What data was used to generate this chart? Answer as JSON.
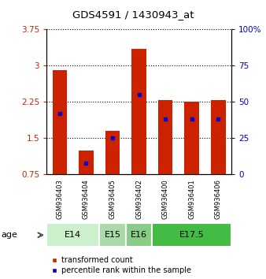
{
  "title": "GDS4591 / 1430943_at",
  "samples": [
    "GSM936403",
    "GSM936404",
    "GSM936405",
    "GSM936402",
    "GSM936400",
    "GSM936401",
    "GSM936406"
  ],
  "transformed_counts": [
    2.9,
    1.25,
    1.65,
    3.35,
    2.28,
    2.25,
    2.28
  ],
  "percentile_ranks": [
    42,
    8,
    25,
    55,
    38,
    38,
    38
  ],
  "age_groups": [
    {
      "label": "E14",
      "samples": [
        "GSM936403",
        "GSM936404"
      ],
      "color": "#ccf0cc"
    },
    {
      "label": "E15",
      "samples": [
        "GSM936405"
      ],
      "color": "#aadaaa"
    },
    {
      "label": "E16",
      "samples": [
        "GSM936402"
      ],
      "color": "#88cc88"
    },
    {
      "label": "E17.5",
      "samples": [
        "GSM936400",
        "GSM936401",
        "GSM936406"
      ],
      "color": "#44bb44"
    }
  ],
  "y_min": 0.75,
  "y_max": 3.75,
  "y_ticks": [
    0.75,
    1.5,
    2.25,
    3.0,
    3.75
  ],
  "y_tick_labels": [
    "0.75",
    "1.5",
    "2.25",
    "3",
    "3.75"
  ],
  "y2_ticks": [
    0,
    25,
    50,
    75,
    100
  ],
  "y2_tick_labels": [
    "0",
    "25",
    "50",
    "75",
    "100%"
  ],
  "bar_color": "#cc2200",
  "dot_color": "#0000cc",
  "bar_width": 0.55,
  "background_plot": "#ffffff",
  "background_fig": "#ffffff",
  "sample_bg_color": "#c8c8c8",
  "legend_items": [
    {
      "label": "transformed count",
      "color": "#cc2200"
    },
    {
      "label": "percentile rank within the sample",
      "color": "#0000cc"
    }
  ]
}
